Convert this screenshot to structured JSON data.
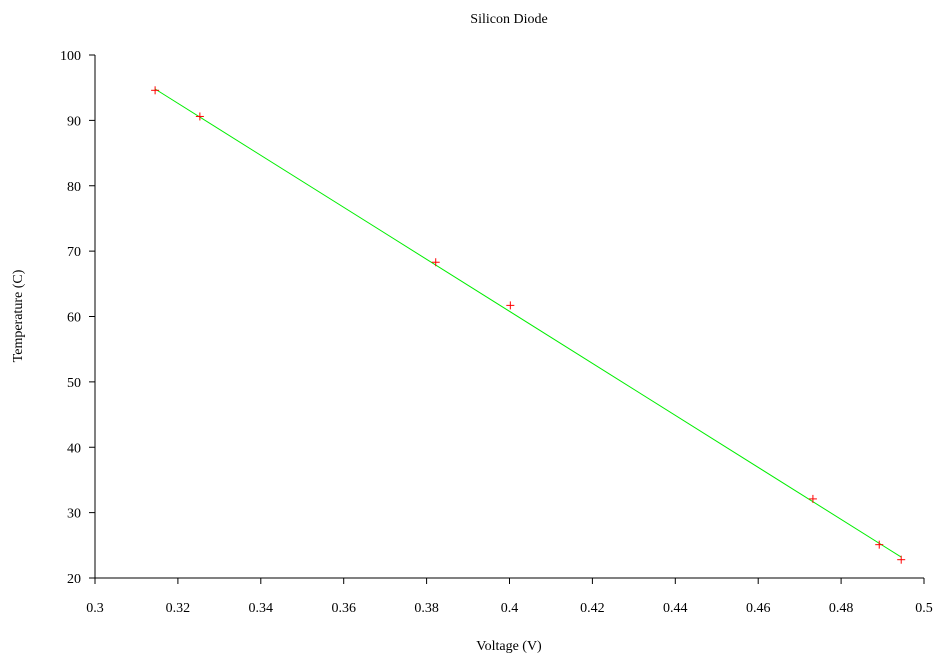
{
  "chart_data": {
    "type": "scatter",
    "title": "Silicon Diode",
    "xlabel": "Voltage (V)",
    "ylabel": "Temperature (C)",
    "xlim": [
      0.3,
      0.5
    ],
    "ylim": [
      20,
      100
    ],
    "x_ticks": [
      "0.3",
      "0.32",
      "0.34",
      "0.36",
      "0.38",
      "0.4",
      "0.42",
      "0.44",
      "0.46",
      "0.48",
      "0.5"
    ],
    "y_ticks": [
      "20",
      "30",
      "40",
      "50",
      "60",
      "70",
      "80",
      "90",
      "100"
    ],
    "grid": false,
    "series": [
      {
        "type": "scatter",
        "marker": "+",
        "color": "#ff0000",
        "points": [
          {
            "x": 0.3145,
            "y": 94.6
          },
          {
            "x": 0.3253,
            "y": 90.6
          },
          {
            "x": 0.3822,
            "y": 68.3
          },
          {
            "x": 0.4002,
            "y": 61.7
          },
          {
            "x": 0.4732,
            "y": 32.1
          },
          {
            "x": 0.4892,
            "y": 25.1
          },
          {
            "x": 0.4945,
            "y": 22.8
          }
        ]
      },
      {
        "type": "line",
        "color": "#00ee00",
        "points": [
          {
            "x": 0.3145,
            "y": 94.8
          },
          {
            "x": 0.4945,
            "y": 23.2
          }
        ]
      }
    ]
  }
}
